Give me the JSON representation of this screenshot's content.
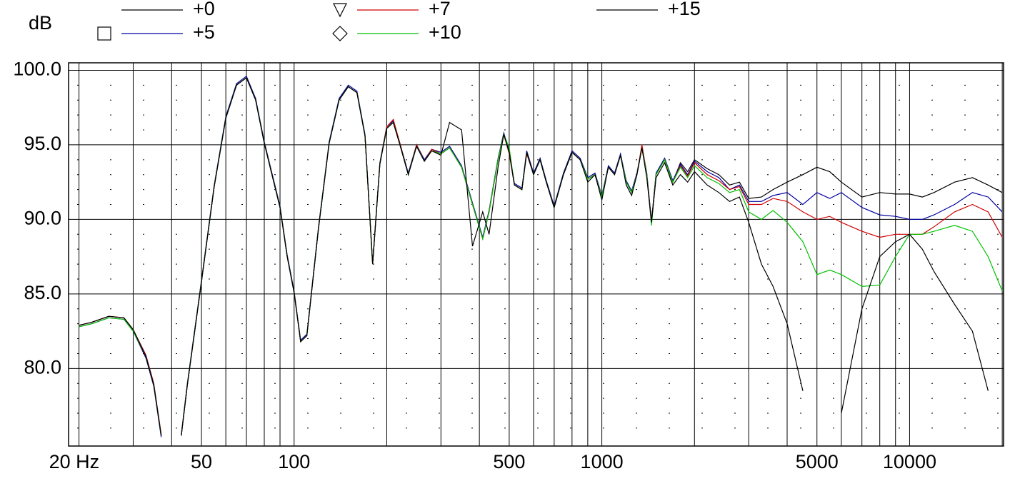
{
  "chart_data": {
    "type": "line",
    "ylabel": "dB",
    "xscale": "log",
    "grid": true,
    "xlim": [
      18.5,
      20200
    ],
    "ylim": [
      74.8,
      100.5
    ],
    "xticks": [
      {
        "value": 20,
        "label": "20 Hz"
      },
      50,
      100,
      500,
      1000,
      5000,
      10000
    ],
    "xgrid": [
      20,
      30,
      40,
      50,
      60,
      70,
      80,
      90,
      100,
      200,
      300,
      400,
      500,
      600,
      700,
      800,
      900,
      1000,
      2000,
      3000,
      4000,
      5000,
      6000,
      7000,
      8000,
      9000,
      10000,
      20000
    ],
    "yticks": [
      {
        "value": 100,
        "label": "100.0"
      },
      {
        "value": 95,
        "label": "95.0"
      },
      {
        "value": 90,
        "label": "90.0"
      },
      {
        "value": 85,
        "label": "85.0"
      },
      {
        "value": 80,
        "label": "80.0"
      }
    ],
    "yminor": [
      76,
      77,
      78,
      79,
      81,
      82,
      83,
      84,
      86,
      87,
      88,
      89,
      91,
      92,
      93,
      94,
      96,
      97,
      98,
      99
    ],
    "x": [
      20,
      22,
      25,
      28,
      30,
      33,
      35,
      37,
      40,
      43,
      45,
      50,
      55,
      60,
      65,
      70,
      75,
      80,
      90,
      95,
      100,
      105,
      110,
      120,
      130,
      140,
      150,
      160,
      170,
      180,
      190,
      200,
      210,
      220,
      235,
      250,
      265,
      280,
      300,
      320,
      350,
      380,
      410,
      430,
      460,
      480,
      500,
      520,
      550,
      570,
      600,
      630,
      660,
      700,
      750,
      800,
      850,
      900,
      950,
      1000,
      1050,
      1100,
      1150,
      1200,
      1250,
      1300,
      1350,
      1400,
      1450,
      1500,
      1600,
      1700,
      1800,
      1900,
      2000,
      2200,
      2400,
      2600,
      2800,
      3000,
      3300,
      3600,
      4000,
      4500,
      5000,
      5500,
      6000,
      7000,
      8000,
      9000,
      10000,
      11000,
      12000,
      14000,
      16000,
      18000,
      20000
    ],
    "series": [
      {
        "name": "+0",
        "color": "#000000",
        "values": [
          82.9,
          83.1,
          83.5,
          83.4,
          82.6,
          80.8,
          78.9,
          75.5,
          null,
          75.5,
          78.9,
          85.8,
          92.2,
          96.8,
          99.0,
          99.5,
          98.0,
          95.1,
          90.8,
          87.5,
          85.1,
          81.8,
          82.2,
          89.4,
          95.1,
          98.0,
          98.9,
          98.5,
          95.6,
          87.0,
          93.7,
          96.1,
          96.5,
          95.1,
          93.0,
          94.9,
          93.9,
          94.6,
          94.4,
          94.8,
          93.5,
          91.0,
          88.7,
          90.5,
          94.0,
          95.7,
          94.5,
          92.3,
          92.0,
          94.5,
          93.0,
          94.0,
          92.5,
          90.8,
          93.0,
          94.5,
          94.0,
          92.7,
          93.0,
          91.5,
          93.5,
          93.0,
          94.3,
          92.5,
          91.8,
          93.0,
          94.8,
          93.0,
          89.8,
          93.0,
          94.0,
          92.5,
          93.8,
          93.2,
          94.0,
          93.4,
          93.0,
          92.3,
          92.5,
          91.4,
          91.5,
          92.0,
          92.5,
          93.0,
          93.5,
          93.2,
          92.5,
          91.5,
          91.8,
          91.7,
          91.7,
          91.5,
          91.8,
          92.5,
          92.8,
          92.3,
          91.8
        ]
      },
      {
        "name": "+5",
        "color": "#0000a0",
        "marker": "square",
        "values": [
          82.8,
          83.0,
          83.4,
          83.3,
          82.5,
          80.7,
          78.8,
          75.4,
          null,
          75.6,
          79.0,
          85.9,
          92.3,
          96.9,
          99.1,
          99.6,
          98.1,
          95.2,
          90.9,
          87.6,
          85.2,
          81.9,
          82.3,
          89.5,
          95.2,
          98.1,
          99.0,
          98.6,
          95.7,
          87.1,
          93.8,
          96.2,
          96.6,
          95.2,
          93.1,
          95.0,
          94.0,
          94.7,
          94.5,
          94.9,
          93.6,
          91.1,
          88.8,
          90.6,
          94.1,
          95.8,
          94.6,
          92.4,
          92.1,
          94.6,
          93.1,
          94.1,
          92.6,
          90.9,
          93.1,
          94.6,
          94.1,
          92.8,
          93.1,
          91.6,
          93.6,
          93.1,
          94.4,
          92.6,
          91.9,
          93.1,
          94.9,
          93.1,
          89.9,
          93.1,
          94.1,
          92.6,
          93.7,
          93.0,
          93.9,
          93.2,
          92.8,
          92.0,
          92.3,
          91.2,
          91.2,
          91.6,
          91.8,
          91.0,
          91.8,
          91.4,
          91.8,
          90.8,
          90.3,
          90.2,
          90.0,
          90.0,
          90.3,
          91.0,
          91.8,
          91.5,
          90.5
        ]
      },
      {
        "name": "+7",
        "color": "#d00000",
        "marker": "triangle-down",
        "values": [
          82.9,
          83.1,
          83.5,
          83.4,
          82.6,
          80.9,
          79.0,
          75.6,
          null,
          75.5,
          78.9,
          85.8,
          92.2,
          96.8,
          99.0,
          99.5,
          98.0,
          95.1,
          90.8,
          87.5,
          85.1,
          81.8,
          82.2,
          89.4,
          95.1,
          98.0,
          98.9,
          98.5,
          95.6,
          87.0,
          93.7,
          96.2,
          96.7,
          95.2,
          93.0,
          95.0,
          93.9,
          94.7,
          94.4,
          94.8,
          93.5,
          91.0,
          88.7,
          90.5,
          94.0,
          95.7,
          94.4,
          92.3,
          92.0,
          94.4,
          93.0,
          94.0,
          92.5,
          90.8,
          93.0,
          94.5,
          94.0,
          92.7,
          93.0,
          91.5,
          93.5,
          93.0,
          94.3,
          92.5,
          91.8,
          93.0,
          95.0,
          93.0,
          89.8,
          93.0,
          94.0,
          92.5,
          93.6,
          92.9,
          93.8,
          93.0,
          92.6,
          92.0,
          92.2,
          91.0,
          91.0,
          91.4,
          91.2,
          90.5,
          90.0,
          90.2,
          89.8,
          89.2,
          88.8,
          89.0,
          89.0,
          89.0,
          89.5,
          90.5,
          91.0,
          90.5,
          88.8
        ]
      },
      {
        "name": "+10",
        "color": "#00c000",
        "marker": "diamond",
        "values": [
          82.8,
          83.0,
          83.4,
          83.3,
          82.5,
          80.8,
          78.9,
          75.5,
          null,
          75.5,
          78.9,
          85.8,
          92.2,
          96.8,
          99.0,
          99.5,
          98.0,
          95.1,
          90.8,
          87.5,
          85.1,
          81.8,
          82.2,
          89.4,
          95.1,
          98.0,
          98.9,
          98.5,
          95.6,
          87.0,
          93.7,
          96.1,
          96.5,
          95.1,
          93.0,
          94.9,
          93.9,
          94.6,
          94.4,
          94.8,
          93.5,
          91.0,
          88.7,
          90.5,
          94.0,
          95.7,
          94.8,
          92.3,
          92.0,
          94.5,
          93.0,
          94.0,
          92.5,
          90.8,
          93.0,
          94.5,
          94.0,
          92.7,
          93.0,
          91.5,
          93.5,
          93.0,
          94.3,
          92.5,
          91.8,
          93.0,
          94.8,
          93.0,
          89.6,
          93.0,
          94.0,
          92.5,
          93.5,
          92.8,
          93.6,
          92.8,
          92.4,
          91.8,
          92.0,
          90.5,
          90.0,
          90.6,
          89.8,
          88.5,
          86.3,
          86.6,
          86.3,
          85.5,
          85.6,
          87.5,
          89.0,
          89.0,
          89.2,
          89.6,
          89.2,
          87.5,
          85.2
        ]
      },
      {
        "name": "+15",
        "color": "#000000",
        "values": [
          82.9,
          83.1,
          83.5,
          83.4,
          82.6,
          80.8,
          78.9,
          75.5,
          null,
          75.5,
          78.9,
          85.8,
          92.2,
          96.8,
          99.0,
          99.5,
          98.0,
          95.1,
          90.8,
          87.5,
          85.1,
          81.8,
          82.2,
          89.4,
          95.1,
          98.0,
          98.9,
          98.5,
          95.6,
          87.0,
          93.7,
          96.1,
          96.5,
          95.1,
          93.0,
          94.9,
          93.9,
          94.6,
          94.3,
          96.5,
          96.0,
          88.2,
          90.5,
          89.0,
          93.5,
          95.7,
          94.5,
          92.3,
          92.0,
          94.5,
          93.0,
          94.0,
          92.5,
          90.8,
          93.0,
          94.5,
          94.0,
          92.5,
          93.0,
          91.3,
          93.5,
          93.0,
          94.3,
          92.3,
          91.6,
          93.0,
          94.8,
          92.8,
          89.8,
          92.8,
          93.8,
          92.3,
          93.0,
          92.5,
          93.2,
          92.3,
          91.8,
          91.2,
          91.5,
          89.8,
          87.0,
          85.5,
          83.0,
          78.5,
          null,
          null,
          77.0,
          84.0,
          87.5,
          88.5,
          89.0,
          88.0,
          86.5,
          84.3,
          82.5,
          78.5,
          null
        ]
      }
    ]
  }
}
